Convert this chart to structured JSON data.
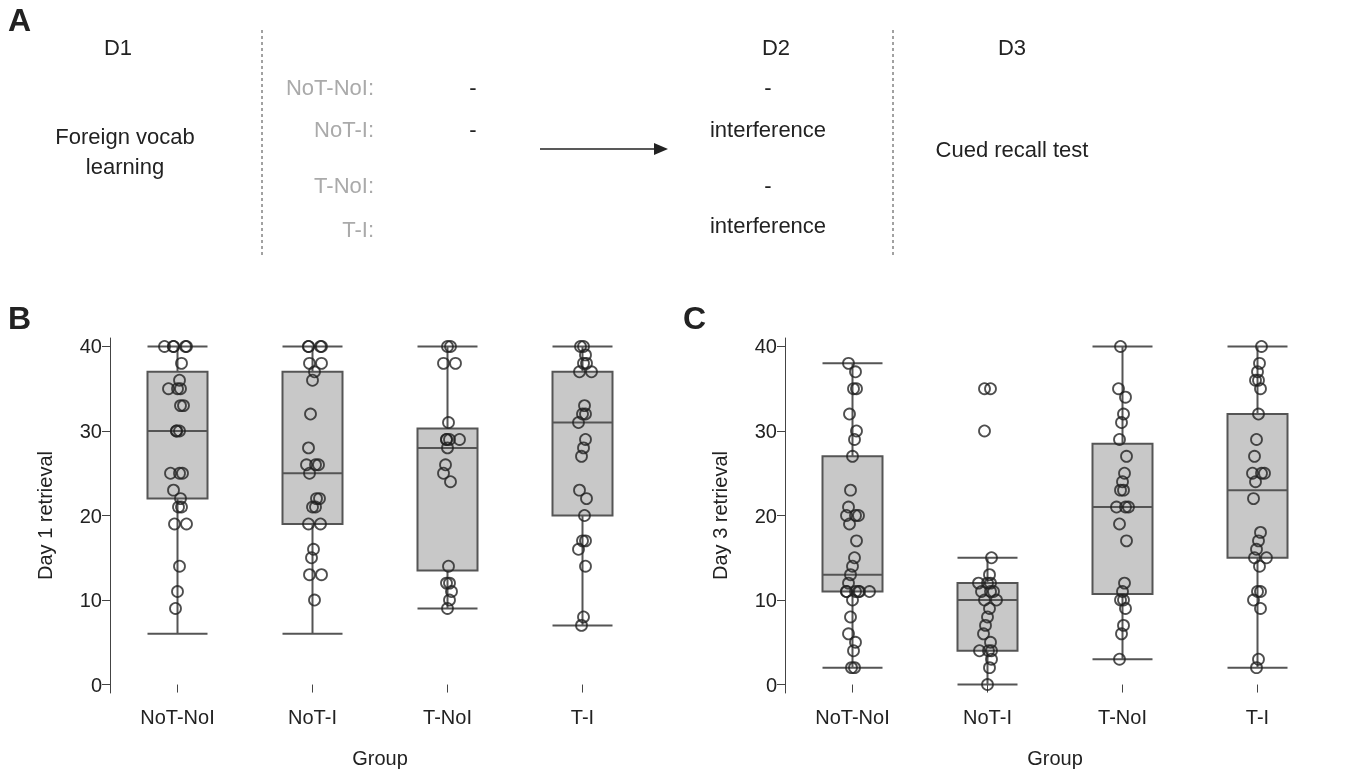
{
  "chart_data": [
    {
      "type": "other",
      "title": "A",
      "annotations": [
        "D1",
        "Foreign vocab learning",
        "D2",
        "NoT-NoI:",
        "NoT-I:",
        "T-NoI:",
        "T-I:",
        "-",
        "-",
        "-",
        "interference",
        "-",
        "interference",
        "D3",
        "Cued recall test"
      ]
    },
    {
      "type": "box",
      "title": "B",
      "xlabel": "Group",
      "ylabel": "Day 1 retrieval",
      "categories": [
        "NoT-NoI",
        "NoT-I",
        "T-NoI",
        "T-I"
      ],
      "ylim": [
        -1,
        41
      ],
      "yticks": [
        0,
        10,
        20,
        30,
        40
      ],
      "grid": false,
      "series": [
        {
          "type": "box",
          "color": "#c8c8c8",
          "boxes": [
            {
              "low": 6,
              "q1": 22,
              "median": 30,
              "q3": 37,
              "high": 40
            },
            {
              "low": 6,
              "q1": 19,
              "median": 25,
              "q3": 37,
              "high": 40
            },
            {
              "low": 9,
              "q1": 13.5,
              "median": 28,
              "q3": 30.3,
              "high": 40
            },
            {
              "low": 7,
              "q1": 20,
              "median": 31,
              "q3": 37,
              "high": 40
            }
          ]
        },
        {
          "type": "scatter",
          "color": "#222222",
          "marker": "circle",
          "x": [
            "NoT-NoI",
            "NoT-NoI",
            "NoT-NoI",
            "NoT-NoI",
            "NoT-NoI",
            "NoT-NoI",
            "NoT-NoI",
            "NoT-NoI",
            "NoT-NoI",
            "NoT-NoI",
            "NoT-NoI",
            "NoT-NoI",
            "NoT-NoI",
            "NoT-NoI",
            "NoT-NoI",
            "NoT-NoI",
            "NoT-NoI",
            "NoT-NoI",
            "NoT-NoI",
            "NoT-NoI",
            "NoT-NoI",
            "NoT-NoI",
            "NoT-NoI",
            "NoT-NoI",
            "NoT-NoI",
            "NoT-NoI",
            "NoT-NoI",
            "NoT-I",
            "NoT-I",
            "NoT-I",
            "NoT-I",
            "NoT-I",
            "NoT-I",
            "NoT-I",
            "NoT-I",
            "NoT-I",
            "NoT-I",
            "NoT-I",
            "NoT-I",
            "NoT-I",
            "NoT-I",
            "NoT-I",
            "NoT-I",
            "NoT-I",
            "NoT-I",
            "NoT-I",
            "NoT-I",
            "NoT-I",
            "NoT-I",
            "NoT-I",
            "NoT-I",
            "NoT-I",
            "T-NoI",
            "T-NoI",
            "T-NoI",
            "T-NoI",
            "T-NoI",
            "T-NoI",
            "T-NoI",
            "T-NoI",
            "T-NoI",
            "T-NoI",
            "T-NoI",
            "T-NoI",
            "T-NoI",
            "T-NoI",
            "T-NoI",
            "T-NoI",
            "T-NoI",
            "T-NoI",
            "T-NoI",
            "T-I",
            "T-I",
            "T-I",
            "T-I",
            "T-I",
            "T-I",
            "T-I",
            "T-I",
            "T-I",
            "T-I",
            "T-I",
            "T-I",
            "T-I",
            "T-I",
            "T-I",
            "T-I",
            "T-I",
            "T-I",
            "T-I",
            "T-I",
            "T-I",
            "T-I",
            "T-I"
          ],
          "values": [
            40,
            40,
            40,
            40,
            40,
            38,
            36,
            35,
            35,
            35,
            33,
            33,
            30,
            30,
            30,
            25,
            25,
            25,
            23,
            22,
            21,
            21,
            19,
            19,
            14,
            11,
            9,
            40,
            40,
            40,
            40,
            38,
            38,
            37,
            36,
            32,
            28,
            26,
            26,
            26,
            25,
            22,
            22,
            21,
            21,
            19,
            19,
            16,
            15,
            13,
            13,
            10,
            40,
            40,
            38,
            38,
            31,
            29,
            29,
            29,
            29,
            28,
            26,
            25,
            24,
            14,
            12,
            12,
            11,
            10,
            9,
            40,
            40,
            39,
            38,
            38,
            37,
            37,
            33,
            32,
            32,
            31,
            29,
            28,
            27,
            23,
            22,
            20,
            17,
            17,
            16,
            14,
            8,
            7
          ]
        }
      ]
    },
    {
      "type": "box",
      "title": "C",
      "xlabel": "Group",
      "ylabel": "Day 3 retrieval",
      "categories": [
        "NoT-NoI",
        "NoT-I",
        "T-NoI",
        "T-I"
      ],
      "ylim": [
        -1,
        41
      ],
      "yticks": [
        0,
        10,
        20,
        30,
        40
      ],
      "grid": false,
      "series": [
        {
          "type": "box",
          "color": "#c8c8c8",
          "boxes": [
            {
              "low": 2,
              "q1": 11,
              "median": 13,
              "q3": 27,
              "high": 38
            },
            {
              "low": 0,
              "q1": 4,
              "median": 10,
              "q3": 12,
              "high": 15,
              "outliers": [
                30,
                35,
                35
              ]
            },
            {
              "low": 3,
              "q1": 10.7,
              "median": 21,
              "q3": 28.5,
              "high": 40
            },
            {
              "low": 2,
              "q1": 15,
              "median": 23,
              "q3": 32,
              "high": 40
            }
          ]
        },
        {
          "type": "scatter",
          "color": "#222222",
          "marker": "circle",
          "x": [
            "NoT-NoI",
            "NoT-NoI",
            "NoT-NoI",
            "NoT-NoI",
            "NoT-NoI",
            "NoT-NoI",
            "NoT-NoI",
            "NoT-NoI",
            "NoT-NoI",
            "NoT-NoI",
            "NoT-NoI",
            "NoT-NoI",
            "NoT-NoI",
            "NoT-NoI",
            "NoT-NoI",
            "NoT-NoI",
            "NoT-NoI",
            "NoT-NoI",
            "NoT-NoI",
            "NoT-NoI",
            "NoT-NoI",
            "NoT-NoI",
            "NoT-NoI",
            "NoT-NoI",
            "NoT-NoI",
            "NoT-NoI",
            "NoT-NoI",
            "NoT-NoI",
            "NoT-NoI",
            "NoT-NoI",
            "NoT-NoI",
            "NoT-NoI",
            "NoT-I",
            "NoT-I",
            "NoT-I",
            "NoT-I",
            "NoT-I",
            "NoT-I",
            "NoT-I",
            "NoT-I",
            "NoT-I",
            "NoT-I",
            "NoT-I",
            "NoT-I",
            "NoT-I",
            "NoT-I",
            "NoT-I",
            "NoT-I",
            "NoT-I",
            "NoT-I",
            "NoT-I",
            "NoT-I",
            "NoT-I",
            "T-NoI",
            "T-NoI",
            "T-NoI",
            "T-NoI",
            "T-NoI",
            "T-NoI",
            "T-NoI",
            "T-NoI",
            "T-NoI",
            "T-NoI",
            "T-NoI",
            "T-NoI",
            "T-NoI",
            "T-NoI",
            "T-NoI",
            "T-NoI",
            "T-NoI",
            "T-NoI",
            "T-NoI",
            "T-NoI",
            "T-NoI",
            "T-NoI",
            "T-NoI",
            "T-NoI",
            "T-I",
            "T-I",
            "T-I",
            "T-I",
            "T-I",
            "T-I",
            "T-I",
            "T-I",
            "T-I",
            "T-I",
            "T-I",
            "T-I",
            "T-I",
            "T-I",
            "T-I",
            "T-I",
            "T-I",
            "T-I",
            "T-I",
            "T-I",
            "T-I",
            "T-I",
            "T-I",
            "T-I",
            "T-I",
            "T-I"
          ],
          "values": [
            38,
            37,
            35,
            35,
            32,
            30,
            29,
            27,
            23,
            21,
            20,
            20,
            20,
            19,
            17,
            15,
            14,
            13,
            12,
            11,
            11,
            11,
            11,
            11,
            11,
            10,
            8,
            6,
            5,
            4,
            2,
            2,
            15,
            13,
            12,
            12,
            12,
            11,
            11,
            11,
            10,
            10,
            9,
            8,
            7,
            6,
            5,
            4,
            4,
            4,
            3,
            2,
            0,
            40,
            35,
            34,
            32,
            31,
            29,
            27,
            25,
            24,
            23,
            23,
            21,
            21,
            21,
            19,
            17,
            12,
            11,
            10,
            10,
            9,
            7,
            6,
            3,
            40,
            38,
            37,
            36,
            36,
            35,
            32,
            29,
            27,
            25,
            25,
            25,
            24,
            22,
            18,
            17,
            16,
            15,
            15,
            14,
            11,
            11,
            10,
            9,
            3,
            2
          ]
        }
      ]
    }
  ]
}
